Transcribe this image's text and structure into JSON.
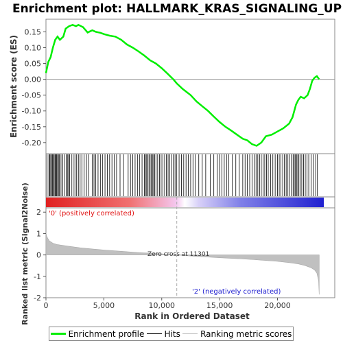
{
  "chart_data": [
    {
      "type": "line",
      "panel": "enrichment",
      "title": "Enrichment plot: HALLMARK_KRAS_SIGNALING_UP",
      "ylabel": "Enrichment score (ES)",
      "xlim": [
        0,
        24000
      ],
      "ylim": [
        -0.235,
        0.19
      ],
      "yticks": [
        -0.2,
        -0.15,
        -0.1,
        -0.05,
        0.0,
        0.05,
        0.1,
        0.15
      ],
      "ytick_labels": [
        "-0.20",
        "-0.15",
        "-0.10",
        "-0.05",
        "0.00",
        "0.05",
        "0.10",
        "0.15"
      ],
      "series": [
        {
          "name": "Enrichment profile",
          "color": "#00ee00",
          "x": [
            0,
            200,
            400,
            600,
            800,
            1000,
            1200,
            1500,
            1700,
            2000,
            2300,
            2600,
            2800,
            3200,
            3600,
            4000,
            4300,
            4700,
            5000,
            5500,
            6000,
            6500,
            7000,
            7500,
            8000,
            8500,
            9000,
            9500,
            10000,
            10500,
            11000,
            11300,
            11800,
            12500,
            13000,
            13500,
            14000,
            14500,
            15000,
            15500,
            16000,
            16500,
            17000,
            17400,
            17800,
            18200,
            18600,
            19000,
            19500,
            20000,
            20500,
            21000,
            21300,
            21600,
            21800,
            22000,
            22300,
            22600,
            22800,
            23000,
            23200,
            23400,
            23600
          ],
          "y": [
            0.02,
            0.055,
            0.07,
            0.1,
            0.125,
            0.135,
            0.125,
            0.135,
            0.16,
            0.168,
            0.172,
            0.168,
            0.172,
            0.165,
            0.148,
            0.155,
            0.15,
            0.147,
            0.143,
            0.138,
            0.135,
            0.125,
            0.11,
            0.1,
            0.088,
            0.075,
            0.06,
            0.05,
            0.035,
            0.018,
            0.0,
            -0.013,
            -0.03,
            -0.05,
            -0.07,
            -0.085,
            -0.1,
            -0.118,
            -0.135,
            -0.15,
            -0.162,
            -0.175,
            -0.188,
            -0.193,
            -0.205,
            -0.21,
            -0.2,
            -0.18,
            -0.175,
            -0.165,
            -0.155,
            -0.14,
            -0.12,
            -0.08,
            -0.065,
            -0.055,
            -0.06,
            -0.05,
            -0.03,
            -0.005,
            0.005,
            0.01,
            0.0
          ]
        }
      ]
    },
    {
      "type": "scatter",
      "panel": "hits",
      "legend_label": "Hits",
      "note_style": "vertical gene-set hit markers",
      "x": [
        100,
        250,
        320,
        410,
        480,
        560,
        640,
        710,
        790,
        850,
        920,
        1000,
        1080,
        1150,
        1300,
        1450,
        1600,
        1750,
        1850,
        1950,
        2050,
        2200,
        2350,
        2500,
        2650,
        2800,
        2950,
        3100,
        3300,
        3500,
        3700,
        4000,
        4150,
        4300,
        4500,
        4700,
        4900,
        5100,
        5300,
        5500,
        5700,
        5900,
        6100,
        6400,
        6700,
        7100,
        7300,
        7500,
        7700,
        7900,
        8100,
        8300,
        8500,
        8600,
        8700,
        8800,
        8900,
        9000,
        9100,
        9200,
        9300,
        9400,
        9500,
        9650,
        9800,
        9950,
        10100,
        10250,
        10400,
        10550,
        10700,
        10850,
        11000,
        11150,
        11300,
        11500,
        11700,
        11900,
        12100,
        12300,
        12500,
        12700,
        12900,
        13200,
        13500,
        13800,
        14200,
        14500,
        14800,
        15000,
        15200,
        15400,
        15600,
        15800,
        16100,
        16400,
        16700,
        17000,
        17200,
        17400,
        17600,
        17800,
        18000,
        18150,
        18300,
        18450,
        18600,
        18750,
        18900,
        19050,
        19200,
        19400,
        19600,
        19800,
        20000,
        20150,
        20300,
        20450,
        20600,
        20750,
        20900,
        21050,
        21200,
        21350,
        21450,
        21550,
        21650,
        21750,
        21850,
        21950,
        22100,
        22250,
        22400,
        22550,
        22700,
        22900,
        23100,
        23300,
        23450
      ]
    },
    {
      "type": "area",
      "panel": "ranked-list",
      "ylabel": "Ranked list metric (Signal2Noise)",
      "xlabel": "Rank in Ordered Dataset",
      "xlim": [
        0,
        24000
      ],
      "ylim": [
        -2,
        2.2
      ],
      "yticks": [
        -2,
        -1,
        0,
        1,
        2
      ],
      "ytick_labels": [
        "-2",
        "-1",
        "0",
        "1",
        "2"
      ],
      "xticks": [
        0,
        5000,
        10000,
        15000,
        20000
      ],
      "xtick_labels": [
        "0",
        "5,000",
        "10,000",
        "15,000",
        "20,000"
      ],
      "series": [
        {
          "name": "Ranking metric scores",
          "color": "#c0c0c0",
          "x": [
            0,
            50,
            150,
            300,
            600,
            1000,
            2000,
            3000,
            4000,
            5000,
            6000,
            7000,
            8000,
            9000,
            10000,
            11301,
            12000,
            13000,
            14000,
            15000,
            16000,
            17000,
            18000,
            19000,
            20000,
            21000,
            21800,
            22400,
            22900,
            23200,
            23400,
            23550,
            23600
          ],
          "y": [
            1.05,
            0.9,
            0.78,
            0.65,
            0.55,
            0.48,
            0.4,
            0.33,
            0.28,
            0.23,
            0.19,
            0.15,
            0.11,
            0.08,
            0.05,
            0.0,
            -0.03,
            -0.07,
            -0.1,
            -0.13,
            -0.16,
            -0.19,
            -0.22,
            -0.26,
            -0.3,
            -0.36,
            -0.42,
            -0.5,
            -0.6,
            -0.7,
            -0.85,
            -1.2,
            -1.85
          ]
        }
      ],
      "annotations": {
        "positive": "'0' (positively correlated)",
        "negative": "'2' (negatively correlated)",
        "zero_cross": "Zero cross at 11301",
        "zero_cross_x": 11301
      }
    }
  ],
  "legend": {
    "enrichment": "Enrichment profile",
    "hits": "Hits",
    "metric": "Ranking metric scores"
  },
  "colors": {
    "profile": "#00ee00",
    "hits": "#000000",
    "positive": "#e01010",
    "negative": "#2020d0",
    "metric_fill": "#c0c0c0"
  }
}
